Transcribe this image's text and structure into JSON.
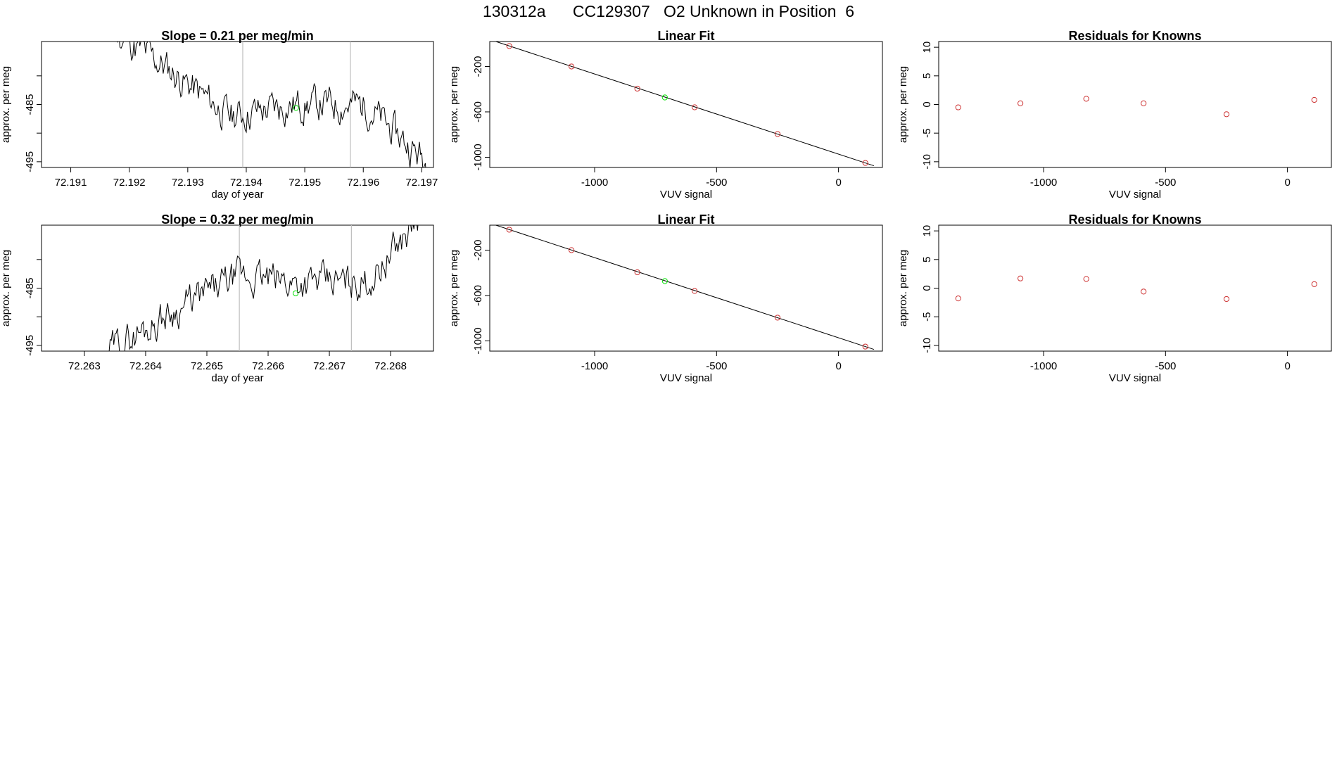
{
  "figure_title": "130312a      CC129307   O2 Unknown in Position  6",
  "colors": {
    "line": "#000000",
    "known_point": "#cd3333",
    "unknown_point": "#00e000",
    "vline": "#bebebe",
    "frame": "#000000"
  },
  "chart_data": [
    {
      "type": "line",
      "panel": "r1c1",
      "title": "Slope =  0.21  per meg/min",
      "xlabel": "day of year",
      "ylabel": "approx. per meg",
      "xlim": [
        72.1905,
        72.1972
      ],
      "ylim": [
        -496,
        -474
      ],
      "xticks": [
        72.191,
        72.192,
        72.193,
        72.194,
        72.195,
        72.196,
        72.197
      ],
      "xtick_labels": [
        "72.191",
        "72.192",
        "72.193",
        "72.194",
        "72.195",
        "72.196",
        "72.197"
      ],
      "yticks": [
        -495,
        -490,
        -485,
        -480
      ],
      "ytick_labels": [
        "-495",
        "",
        "-485",
        ""
      ],
      "vlines": [
        72.19394,
        72.19578
      ],
      "series": [
        {
          "x0": 72.1914,
          "dx": 2e-05,
          "seed": 11,
          "values_summary": [
            -470,
            -478,
            -487,
            -485,
            -485,
            -496
          ]
        }
      ],
      "unknown_point": {
        "x": 72.19485,
        "y": -485.6
      }
    },
    {
      "type": "scatter",
      "panel": "r1c2",
      "title": "Linear Fit",
      "xlabel": "VUV signal",
      "ylabel": "approx. per meg",
      "xlim": [
        -1430,
        180
      ],
      "ylim": [
        -1090,
        20
      ],
      "xticks": [
        -1000,
        -500,
        0
      ],
      "xtick_labels": [
        "-1000",
        "-500",
        "0"
      ],
      "yticks": [
        -1000,
        -600,
        -200
      ],
      "ytick_labels": [
        "-1000",
        "-600",
        "-200"
      ],
      "known_points": {
        "x": [
          -1350,
          -1095,
          -825,
          -590,
          -250,
          110
        ],
        "y": [
          -20,
          -200,
          -395,
          -560,
          -795,
          -1050
        ]
      },
      "unknown_point": {
        "x": -712,
        "y": -473
      },
      "fit_line": {
        "x": [
          -1405,
          145
        ],
        "y": [
          20,
          -1075
        ]
      }
    },
    {
      "type": "scatter",
      "panel": "r1c3",
      "title": "Residuals for Knowns",
      "xlabel": "VUV signal",
      "ylabel": "approx. per meg",
      "xlim": [
        -1430,
        180
      ],
      "ylim": [
        -11,
        11
      ],
      "xticks": [
        -1000,
        -500,
        0
      ],
      "xtick_labels": [
        "-1000",
        "-500",
        "0"
      ],
      "yticks": [
        -10,
        -5,
        0,
        5,
        10
      ],
      "ytick_labels": [
        "-10",
        "-5",
        "0",
        "5",
        "10"
      ],
      "known_points": {
        "x": [
          -1350,
          -1095,
          -825,
          -590,
          -250,
          110
        ],
        "y": [
          -0.5,
          0.2,
          1.0,
          0.2,
          -1.7,
          0.8
        ]
      }
    },
    {
      "type": "line",
      "panel": "r2c1",
      "title": "Slope =  0.32  per meg/min",
      "xlabel": "day of year",
      "ylabel": "approx. per meg",
      "xlim": [
        72.2623,
        72.2687
      ],
      "ylim": [
        -496,
        -474
      ],
      "xticks": [
        72.263,
        72.264,
        72.265,
        72.266,
        72.267,
        72.268
      ],
      "xtick_labels": [
        "72.263",
        "72.264",
        "72.265",
        "72.266",
        "72.267",
        "72.268"
      ],
      "yticks": [
        -495,
        -490,
        -485,
        -480
      ],
      "ytick_labels": [
        "-495",
        "",
        "-485",
        ""
      ],
      "vlines": [
        72.26553,
        72.26736
      ],
      "series": [
        {
          "x0": 72.2634,
          "dx": 2e-05,
          "seed": 29,
          "values_summary": [
            -496,
            -489,
            -483,
            -484,
            -484,
            -470
          ]
        }
      ],
      "unknown_point": {
        "x": 72.26645,
        "y": -485.9
      }
    },
    {
      "type": "scatter",
      "panel": "r2c2",
      "title": "Linear Fit",
      "xlabel": "VUV signal",
      "ylabel": "approx. per meg",
      "xlim": [
        -1430,
        180
      ],
      "ylim": [
        -1090,
        20
      ],
      "xticks": [
        -1000,
        -500,
        0
      ],
      "xtick_labels": [
        "-1000",
        "-500",
        "0"
      ],
      "yticks": [
        -1000,
        -600,
        -200
      ],
      "ytick_labels": [
        "-1000",
        "-600",
        "-200"
      ],
      "known_points": {
        "x": [
          -1350,
          -1095,
          -825,
          -590,
          -250,
          110
        ],
        "y": [
          -20,
          -200,
          -395,
          -560,
          -795,
          -1050
        ]
      },
      "unknown_point": {
        "x": -712,
        "y": -473
      },
      "fit_line": {
        "x": [
          -1405,
          145
        ],
        "y": [
          20,
          -1075
        ]
      }
    },
    {
      "type": "scatter",
      "panel": "r2c3",
      "title": "Residuals for Knowns",
      "xlabel": "VUV signal",
      "ylabel": "approx. per meg",
      "xlim": [
        -1430,
        180
      ],
      "ylim": [
        -11,
        11
      ],
      "xticks": [
        -1000,
        -500,
        0
      ],
      "xtick_labels": [
        "-1000",
        "-500",
        "0"
      ],
      "yticks": [
        -10,
        -5,
        0,
        5,
        10
      ],
      "ytick_labels": [
        "-10",
        "-5",
        "0",
        "5",
        "10"
      ],
      "known_points": {
        "x": [
          -1350,
          -1095,
          -825,
          -590,
          -250,
          110
        ],
        "y": [
          -1.8,
          1.7,
          1.6,
          -0.6,
          -1.9,
          0.7
        ]
      }
    }
  ]
}
